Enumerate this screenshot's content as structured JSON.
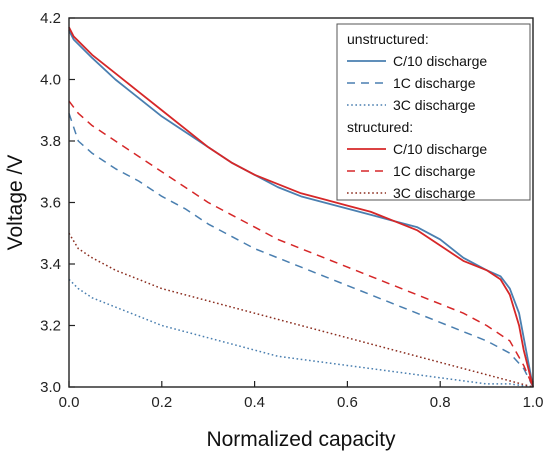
{
  "chart_data": {
    "type": "line",
    "title": "",
    "xlabel": "Normalized capacity",
    "ylabel": "Voltage /V",
    "xlim": [
      0.0,
      1.0
    ],
    "ylim": [
      3.0,
      4.2
    ],
    "x_ticks": [
      0.0,
      0.2,
      0.4,
      0.6,
      0.8,
      1.0
    ],
    "y_ticks": [
      3.0,
      3.2,
      3.4,
      3.6,
      3.8,
      4.0,
      4.2
    ],
    "grid": false,
    "legend_position": "top-right",
    "legend_groups": [
      "unstructured:",
      "structured:"
    ],
    "series": [
      {
        "name": "C/10 discharge",
        "group": "unstructured:",
        "color": "#4a7fb0",
        "dash": "solid",
        "x": [
          0.0,
          0.01,
          0.05,
          0.1,
          0.15,
          0.2,
          0.25,
          0.3,
          0.35,
          0.4,
          0.45,
          0.5,
          0.55,
          0.6,
          0.65,
          0.7,
          0.75,
          0.8,
          0.85,
          0.9,
          0.93,
          0.95,
          0.97,
          0.98,
          0.99,
          1.0
        ],
        "y": [
          4.16,
          4.13,
          4.07,
          4.0,
          3.94,
          3.88,
          3.83,
          3.78,
          3.73,
          3.69,
          3.65,
          3.62,
          3.6,
          3.58,
          3.56,
          3.54,
          3.52,
          3.48,
          3.42,
          3.38,
          3.36,
          3.32,
          3.24,
          3.16,
          3.08,
          3.0
        ]
      },
      {
        "name": "1C discharge",
        "group": "unstructured:",
        "color": "#4a7fb0",
        "dash": "dashed",
        "x": [
          0.0,
          0.02,
          0.05,
          0.1,
          0.15,
          0.2,
          0.25,
          0.3,
          0.35,
          0.4,
          0.45,
          0.5,
          0.55,
          0.6,
          0.65,
          0.7,
          0.75,
          0.8,
          0.85,
          0.9,
          0.95,
          0.98,
          1.0
        ],
        "y": [
          3.89,
          3.8,
          3.76,
          3.71,
          3.67,
          3.62,
          3.58,
          3.53,
          3.49,
          3.45,
          3.42,
          3.39,
          3.36,
          3.33,
          3.3,
          3.27,
          3.24,
          3.21,
          3.18,
          3.15,
          3.11,
          3.06,
          3.0
        ]
      },
      {
        "name": "3C discharge",
        "group": "unstructured:",
        "color": "#4a7fb0",
        "dash": "dotted",
        "x": [
          0.0,
          0.02,
          0.05,
          0.1,
          0.15,
          0.2,
          0.25,
          0.3,
          0.35,
          0.4,
          0.45,
          0.5,
          0.55,
          0.6,
          0.65,
          0.7,
          0.75,
          0.8,
          0.85,
          0.9,
          0.95,
          1.0
        ],
        "y": [
          3.35,
          3.32,
          3.29,
          3.26,
          3.23,
          3.2,
          3.18,
          3.16,
          3.14,
          3.12,
          3.1,
          3.09,
          3.08,
          3.07,
          3.06,
          3.05,
          3.04,
          3.03,
          3.02,
          3.01,
          3.01,
          3.0
        ]
      },
      {
        "name": "C/10 discharge",
        "group": "structured:",
        "color": "#d62728",
        "dash": "solid",
        "x": [
          0.0,
          0.01,
          0.05,
          0.1,
          0.15,
          0.2,
          0.25,
          0.3,
          0.35,
          0.4,
          0.45,
          0.5,
          0.55,
          0.6,
          0.65,
          0.7,
          0.75,
          0.8,
          0.85,
          0.9,
          0.93,
          0.95,
          0.97,
          0.98,
          0.99,
          1.0
        ],
        "y": [
          4.17,
          4.14,
          4.08,
          4.02,
          3.96,
          3.9,
          3.84,
          3.78,
          3.73,
          3.69,
          3.66,
          3.63,
          3.61,
          3.59,
          3.57,
          3.54,
          3.51,
          3.46,
          3.41,
          3.38,
          3.35,
          3.3,
          3.2,
          3.12,
          3.06,
          3.0
        ]
      },
      {
        "name": "1C discharge",
        "group": "structured:",
        "color": "#d62728",
        "dash": "dashed",
        "x": [
          0.0,
          0.02,
          0.05,
          0.1,
          0.15,
          0.2,
          0.25,
          0.3,
          0.35,
          0.4,
          0.45,
          0.5,
          0.55,
          0.6,
          0.65,
          0.7,
          0.75,
          0.8,
          0.85,
          0.9,
          0.95,
          0.98,
          1.0
        ],
        "y": [
          3.93,
          3.89,
          3.85,
          3.8,
          3.75,
          3.7,
          3.65,
          3.6,
          3.56,
          3.52,
          3.48,
          3.45,
          3.42,
          3.39,
          3.36,
          3.33,
          3.3,
          3.27,
          3.24,
          3.2,
          3.15,
          3.07,
          3.0
        ]
      },
      {
        "name": "3C discharge",
        "group": "structured:",
        "color": "#8b2d1f",
        "dash": "dotted",
        "x": [
          0.0,
          0.02,
          0.05,
          0.1,
          0.15,
          0.2,
          0.25,
          0.3,
          0.35,
          0.4,
          0.45,
          0.5,
          0.55,
          0.6,
          0.65,
          0.7,
          0.75,
          0.8,
          0.85,
          0.9,
          0.95,
          1.0
        ],
        "y": [
          3.5,
          3.45,
          3.42,
          3.38,
          3.35,
          3.32,
          3.3,
          3.28,
          3.26,
          3.24,
          3.22,
          3.2,
          3.18,
          3.16,
          3.14,
          3.12,
          3.1,
          3.08,
          3.06,
          3.04,
          3.02,
          3.0
        ]
      }
    ]
  }
}
